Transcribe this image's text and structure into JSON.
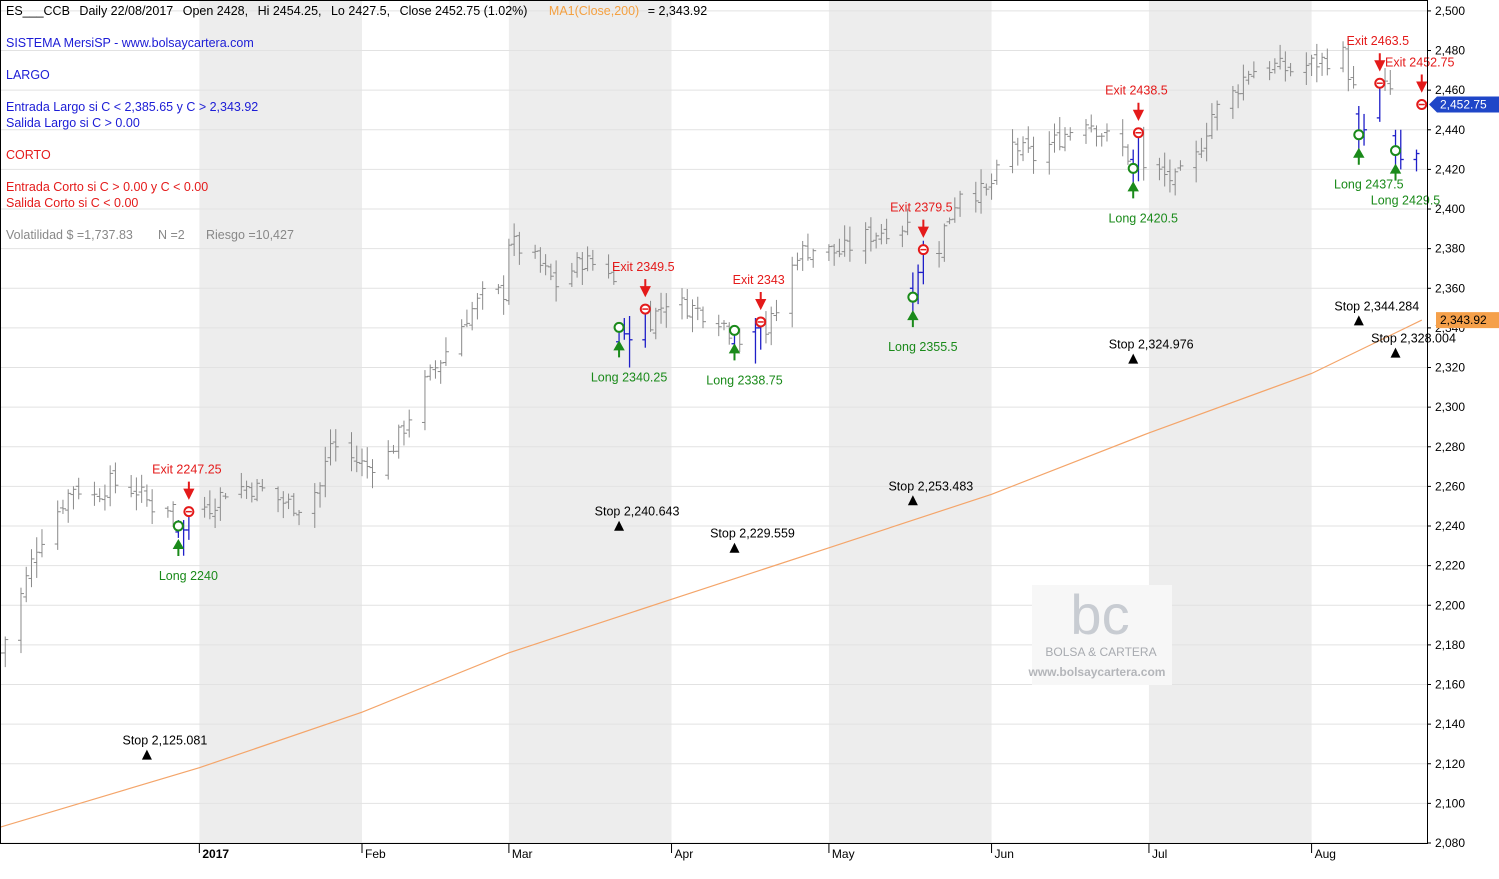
{
  "header": {
    "symbol": "ES___CCB",
    "info": "Daily 22/08/2017",
    "open": "Open 2428,",
    "high": "Hi 2454.25,",
    "low": "Lo 2427.5,",
    "close": "Close 2452.75 (1.02%)",
    "ma_label": "MA1(Close,200)",
    "ma_value": "= 2,343.92"
  },
  "system": {
    "name": "SISTEMA MersiSP  -  www.bolsaycartera.com",
    "largo_title": "LARGO",
    "largo_entry": "Entrada Largo si C < 2,385.65  y  C > 2,343.92",
    "largo_exit": "Salida Largo si    C > 0.00",
    "corto_title": "CORTO",
    "corto_entry": "Entrada Corto si  C > 0.00  y  C < 0.00",
    "corto_exit": "Salida Corto si    C < 0.00",
    "volatility": "Volatilidad $ =1,737.83",
    "n": "N =2",
    "risk": "Riesgo =10,427"
  },
  "watermark": {
    "logo": "bc",
    "name": "BOLSA & CARTERA",
    "url": "www.bolsaycartera.com"
  },
  "colors": {
    "price": "#8a8a8a",
    "trade_bars": "#1f1fc8",
    "ma": "#f4a56a",
    "entry": "#1a8a1a",
    "exit": "#e41a1a",
    "stop": "#000000",
    "last_price_tag": "#1f46c8",
    "ma_tag": "#f5a04a",
    "band": "#ededed"
  },
  "chart_data": {
    "type": "ohlc",
    "ylim": [
      2080,
      2505
    ],
    "y_ticks": [
      2080,
      2100,
      2120,
      2140,
      2160,
      2180,
      2200,
      2220,
      2240,
      2260,
      2280,
      2300,
      2320,
      2340,
      2360,
      2380,
      2400,
      2420,
      2440,
      2460,
      2480,
      2500
    ],
    "y_tick_labels": [
      "2,080",
      "2,100",
      "2,120",
      "2,140",
      "2,160",
      "2,180",
      "2,200",
      "2,220",
      "2,240",
      "2,260",
      "2,280",
      "2,300",
      "2,320",
      "2,340",
      "2,360",
      "2,380",
      "2,400",
      "2,420",
      "2,440",
      "2,460",
      "2,480",
      "2,500"
    ],
    "x_range": [
      "2016-11-24",
      "2017-08-23"
    ],
    "months": [
      {
        "date": "2017-01-01",
        "label": "2017"
      },
      {
        "date": "2017-02-01",
        "label": "Feb"
      },
      {
        "date": "2017-03-01",
        "label": "Mar"
      },
      {
        "date": "2017-04-01",
        "label": "Apr"
      },
      {
        "date": "2017-05-01",
        "label": "May"
      },
      {
        "date": "2017-06-01",
        "label": "Jun"
      },
      {
        "date": "2017-07-01",
        "label": "Jul"
      },
      {
        "date": "2017-08-01",
        "label": "Aug"
      }
    ],
    "shaded_bands": [
      [
        "2017-01-01",
        "2017-02-01"
      ],
      [
        "2017-03-01",
        "2017-04-01"
      ],
      [
        "2017-05-01",
        "2017-06-01"
      ],
      [
        "2017-07-01",
        "2017-08-01"
      ]
    ],
    "price_path": [
      [
        "2016-11-24",
        2176
      ],
      [
        "2016-11-28",
        2205
      ],
      [
        "2016-12-01",
        2230
      ],
      [
        "2016-12-05",
        2248
      ],
      [
        "2016-12-08",
        2260
      ],
      [
        "2016-12-12",
        2255
      ],
      [
        "2016-12-15",
        2262
      ],
      [
        "2016-12-20",
        2258
      ],
      [
        "2016-12-23",
        2250
      ],
      [
        "2016-12-28",
        2250
      ],
      [
        "2017-01-03",
        2250
      ],
      [
        "2017-01-06",
        2258
      ],
      [
        "2017-01-10",
        2260
      ],
      [
        "2017-01-13",
        2258
      ],
      [
        "2017-01-17",
        2252
      ],
      [
        "2017-01-20",
        2250
      ],
      [
        "2017-01-24",
        2260
      ],
      [
        "2017-01-26",
        2282
      ],
      [
        "2017-01-30",
        2274
      ],
      [
        "2017-02-02",
        2270
      ],
      [
        "2017-02-06",
        2276
      ],
      [
        "2017-02-09",
        2290
      ],
      [
        "2017-02-13",
        2312
      ],
      [
        "2017-02-16",
        2324
      ],
      [
        "2017-02-21",
        2346
      ],
      [
        "2017-02-24",
        2356
      ],
      [
        "2017-02-28",
        2358
      ],
      [
        "2017-03-01",
        2384
      ],
      [
        "2017-03-06",
        2374
      ],
      [
        "2017-03-10",
        2362
      ],
      [
        "2017-03-15",
        2374
      ],
      [
        "2017-03-20",
        2370
      ],
      [
        "2017-03-24",
        2340
      ],
      [
        "2017-03-28",
        2344
      ],
      [
        "2017-03-31",
        2354
      ],
      [
        "2017-04-05",
        2350
      ],
      [
        "2017-04-10",
        2345
      ],
      [
        "2017-04-13",
        2336
      ],
      [
        "2017-04-18",
        2334
      ],
      [
        "2017-04-21",
        2348
      ],
      [
        "2017-04-25",
        2378
      ],
      [
        "2017-04-28",
        2380
      ],
      [
        "2017-05-03",
        2378
      ],
      [
        "2017-05-08",
        2386
      ],
      [
        "2017-05-12",
        2390
      ],
      [
        "2017-05-16",
        2392
      ],
      [
        "2017-05-19",
        2355
      ],
      [
        "2017-05-23",
        2390
      ],
      [
        "2017-05-26",
        2410
      ],
      [
        "2017-05-31",
        2408
      ],
      [
        "2017-06-05",
        2432
      ],
      [
        "2017-06-09",
        2426
      ],
      [
        "2017-06-14",
        2436
      ],
      [
        "2017-06-19",
        2446
      ],
      [
        "2017-06-23",
        2436
      ],
      [
        "2017-06-26",
        2430
      ],
      [
        "2017-06-29",
        2420
      ],
      [
        "2017-07-03",
        2418
      ],
      [
        "2017-07-06",
        2414
      ],
      [
        "2017-07-10",
        2426
      ],
      [
        "2017-07-13",
        2448
      ],
      [
        "2017-07-17",
        2458
      ],
      [
        "2017-07-20",
        2470
      ],
      [
        "2017-07-25",
        2472
      ],
      [
        "2017-07-28",
        2470
      ],
      [
        "2017-08-02",
        2474
      ],
      [
        "2017-08-07",
        2478
      ],
      [
        "2017-08-09",
        2460
      ],
      [
        "2017-08-11",
        2436
      ],
      [
        "2017-08-14",
        2462
      ],
      [
        "2017-08-16",
        2460
      ],
      [
        "2017-08-18",
        2426
      ],
      [
        "2017-08-21",
        2428
      ],
      [
        "2017-08-22",
        2452.75
      ]
    ],
    "ma_path": [
      [
        "2016-11-24",
        2088
      ],
      [
        "2017-01-01",
        2118
      ],
      [
        "2017-02-01",
        2146
      ],
      [
        "2017-03-01",
        2176
      ],
      [
        "2017-04-01",
        2203
      ],
      [
        "2017-05-01",
        2229
      ],
      [
        "2017-06-01",
        2256
      ],
      [
        "2017-07-01",
        2287
      ],
      [
        "2017-08-01",
        2317
      ],
      [
        "2017-08-22",
        2343.92
      ]
    ],
    "trade_bars": [
      {
        "date": "2016-12-28",
        "open": 2237,
        "high": 2243,
        "low": 2234,
        "close": 2240
      },
      {
        "date": "2016-12-29",
        "open": 2240,
        "high": 2243,
        "low": 2225,
        "close": 2238
      },
      {
        "date": "2016-12-30",
        "open": 2238,
        "high": 2247,
        "low": 2233,
        "close": 2247
      },
      {
        "date": "2017-03-22",
        "open": 2333,
        "high": 2341,
        "low": 2330,
        "close": 2340
      },
      {
        "date": "2017-03-23",
        "open": 2340,
        "high": 2345,
        "low": 2334,
        "close": 2337
      },
      {
        "date": "2017-03-24",
        "open": 2337,
        "high": 2346,
        "low": 2320,
        "close": 2334
      },
      {
        "date": "2017-03-27",
        "open": 2334,
        "high": 2350,
        "low": 2330,
        "close": 2349.5
      },
      {
        "date": "2017-04-13",
        "open": 2332,
        "high": 2340,
        "low": 2325,
        "close": 2338.75
      },
      {
        "date": "2017-04-17",
        "open": 2338,
        "high": 2345,
        "low": 2322,
        "close": 2340
      },
      {
        "date": "2017-04-18",
        "open": 2340,
        "high": 2345,
        "low": 2329,
        "close": 2343
      },
      {
        "date": "2017-05-17",
        "open": 2360,
        "high": 2368,
        "low": 2343,
        "close": 2355.5
      },
      {
        "date": "2017-05-18",
        "open": 2355,
        "high": 2372,
        "low": 2352,
        "close": 2368
      },
      {
        "date": "2017-05-19",
        "open": 2368,
        "high": 2384,
        "low": 2362,
        "close": 2379.5
      },
      {
        "date": "2017-06-28",
        "open": 2425,
        "high": 2430,
        "low": 2412,
        "close": 2420.5
      },
      {
        "date": "2017-06-29",
        "open": 2420,
        "high": 2440,
        "low": 2414,
        "close": 2438.5
      },
      {
        "date": "2017-08-10",
        "open": 2448,
        "high": 2452,
        "low": 2430,
        "close": 2437.5
      },
      {
        "date": "2017-08-11",
        "open": 2437,
        "high": 2448,
        "low": 2432,
        "close": 2440
      },
      {
        "date": "2017-08-14",
        "open": 2446,
        "high": 2466,
        "low": 2444,
        "close": 2463.5
      },
      {
        "date": "2017-08-17",
        "open": 2437,
        "high": 2440,
        "low": 2422,
        "close": 2429.5
      },
      {
        "date": "2017-08-18",
        "open": 2429,
        "high": 2440,
        "low": 2420,
        "close": 2425
      },
      {
        "date": "2017-08-21",
        "open": 2425,
        "high": 2430,
        "low": 2419,
        "close": 2428
      }
    ],
    "trades": [
      {
        "entry_date": "2016-12-28",
        "entry_price": 2240,
        "entry_label": "Long 2240",
        "exit_date": "2016-12-30",
        "exit_price": 2247.25,
        "exit_label": "Exit 2247.25"
      },
      {
        "entry_date": "2017-03-22",
        "entry_price": 2340.25,
        "entry_label": "Long 2340.25",
        "exit_date": "2017-03-27",
        "exit_price": 2349.5,
        "exit_label": "Exit 2349.5"
      },
      {
        "entry_date": "2017-04-13",
        "entry_price": 2338.75,
        "entry_label": "Long 2338.75",
        "exit_date": "2017-04-18",
        "exit_price": 2343,
        "exit_label": "Exit 2343"
      },
      {
        "entry_date": "2017-05-17",
        "entry_price": 2355.5,
        "entry_label": "Long 2355.5",
        "exit_date": "2017-05-19",
        "exit_price": 2379.5,
        "exit_label": "Exit 2379.5"
      },
      {
        "entry_date": "2017-06-28",
        "entry_price": 2420.5,
        "entry_label": "Long 2420.5",
        "exit_date": "2017-06-29",
        "exit_price": 2438.5,
        "exit_label": "Exit 2438.5"
      },
      {
        "entry_date": "2017-08-10",
        "entry_price": 2437.5,
        "entry_label": "Long 2437.5",
        "exit_date": "2017-08-14",
        "exit_price": 2463.5,
        "exit_label": "Exit 2463.5"
      },
      {
        "entry_date": "2017-08-17",
        "entry_price": 2429.5,
        "entry_label": "Long 2429.5",
        "exit_date": "2017-08-22",
        "exit_price": 2452.75,
        "exit_label": "Exit 2452.75"
      }
    ],
    "stops": [
      {
        "date": "2016-12-22",
        "value": 2125.081,
        "label": "Stop 2,125.081"
      },
      {
        "date": "2017-03-22",
        "value": 2240.643,
        "label": "Stop 2,240.643"
      },
      {
        "date": "2017-04-13",
        "value": 2229.559,
        "label": "Stop 2,229.559"
      },
      {
        "date": "2017-05-17",
        "value": 2253.483,
        "label": "Stop 2,253.483"
      },
      {
        "date": "2017-06-28",
        "value": 2324.976,
        "label": "Stop 2,324.976"
      },
      {
        "date": "2017-08-10",
        "value": 2344.284,
        "label": "Stop 2,344.284"
      },
      {
        "date": "2017-08-17",
        "value": 2328.004,
        "label": "Stop 2,328.004"
      }
    ],
    "last_price": {
      "value": 2452.75,
      "label": "2,452.75"
    },
    "ma_last": {
      "value": 2343.92,
      "label": "2,343.92"
    }
  }
}
